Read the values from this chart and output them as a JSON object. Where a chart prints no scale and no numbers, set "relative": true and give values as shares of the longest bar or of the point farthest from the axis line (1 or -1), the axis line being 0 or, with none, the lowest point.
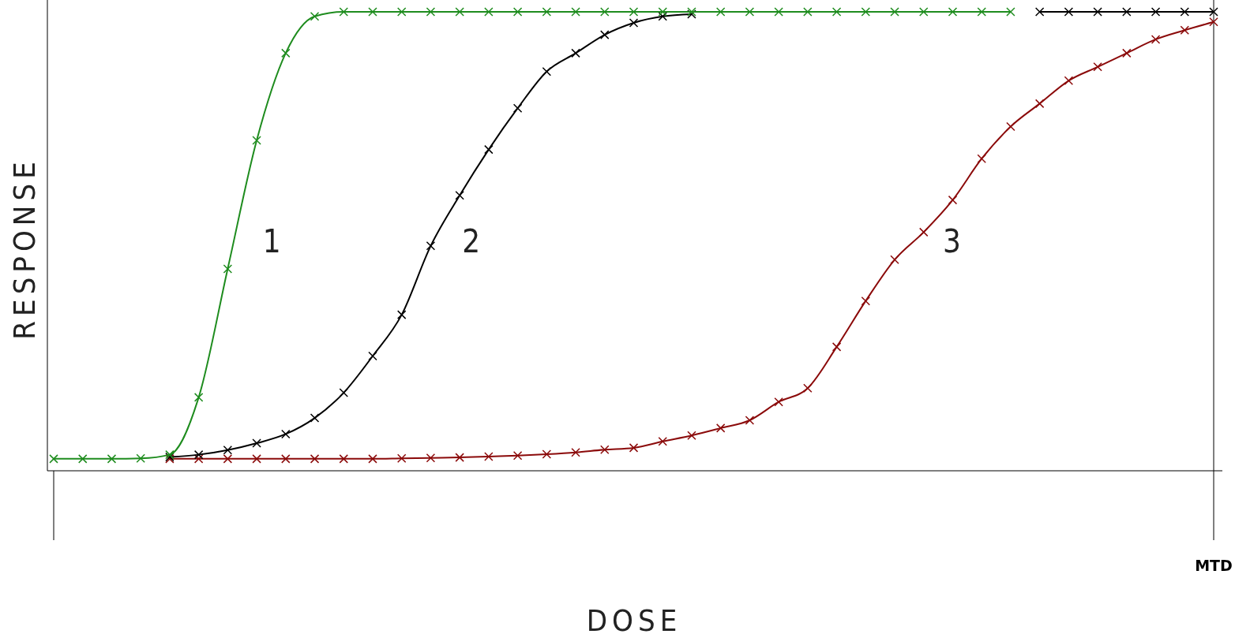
{
  "chart_data": {
    "type": "line",
    "relative": true,
    "xlabel": "DOSE",
    "ylabel": "RESPONSE",
    "marker": "cross",
    "line_style": "solid",
    "categories": [
      null,
      null,
      null,
      null,
      null,
      null,
      null,
      null,
      null,
      null,
      null,
      null,
      null,
      null,
      null,
      null,
      null,
      null,
      null,
      null,
      null,
      null,
      null,
      null,
      null,
      null,
      null,
      null,
      null,
      null,
      null,
      null,
      null,
      null,
      null,
      null,
      null,
      null,
      null,
      null,
      null
    ],
    "annotations": [
      "MTD"
    ],
    "series": [
      {
        "name": "1",
        "color": "#1e8c1e",
        "values": [
          0.026,
          0.026,
          0.026,
          0.027,
          0.035,
          0.16,
          0.44,
          0.72,
          0.91,
          0.99,
          1.0,
          1.0,
          1.0,
          1.0,
          1.0,
          1.0,
          1.0,
          1.0,
          1.0,
          1.0,
          1.0,
          1.0,
          1.0,
          1.0,
          1.0,
          1.0,
          1.0,
          1.0,
          1.0,
          1.0,
          1.0,
          1.0,
          1.0,
          1.0,
          null,
          null,
          null,
          null,
          null,
          null,
          null
        ]
      },
      {
        "name": "2",
        "color": "#000000",
        "values": [
          null,
          null,
          null,
          null,
          0.03,
          0.035,
          0.045,
          0.06,
          0.08,
          0.115,
          0.17,
          0.25,
          0.34,
          0.49,
          0.6,
          0.7,
          0.79,
          0.87,
          0.91,
          0.95,
          0.976,
          0.99,
          0.995,
          null,
          null,
          null,
          null,
          null,
          null,
          null,
          null,
          null,
          null,
          null,
          1.0,
          1.0,
          1.0,
          1.0,
          1.0,
          1.0,
          1.0
        ]
      },
      {
        "name": "3",
        "color": "#8b0a0a",
        "values": [
          null,
          null,
          null,
          null,
          0.026,
          0.026,
          0.026,
          0.026,
          0.026,
          0.026,
          0.026,
          0.026,
          0.027,
          0.028,
          0.029,
          0.031,
          0.033,
          0.036,
          0.04,
          0.046,
          0.05,
          0.064,
          0.077,
          0.093,
          0.11,
          0.15,
          0.18,
          0.27,
          0.37,
          0.46,
          0.52,
          0.59,
          0.68,
          0.75,
          0.8,
          0.85,
          0.88,
          0.91,
          0.94,
          0.96,
          0.978
        ]
      }
    ]
  }
}
